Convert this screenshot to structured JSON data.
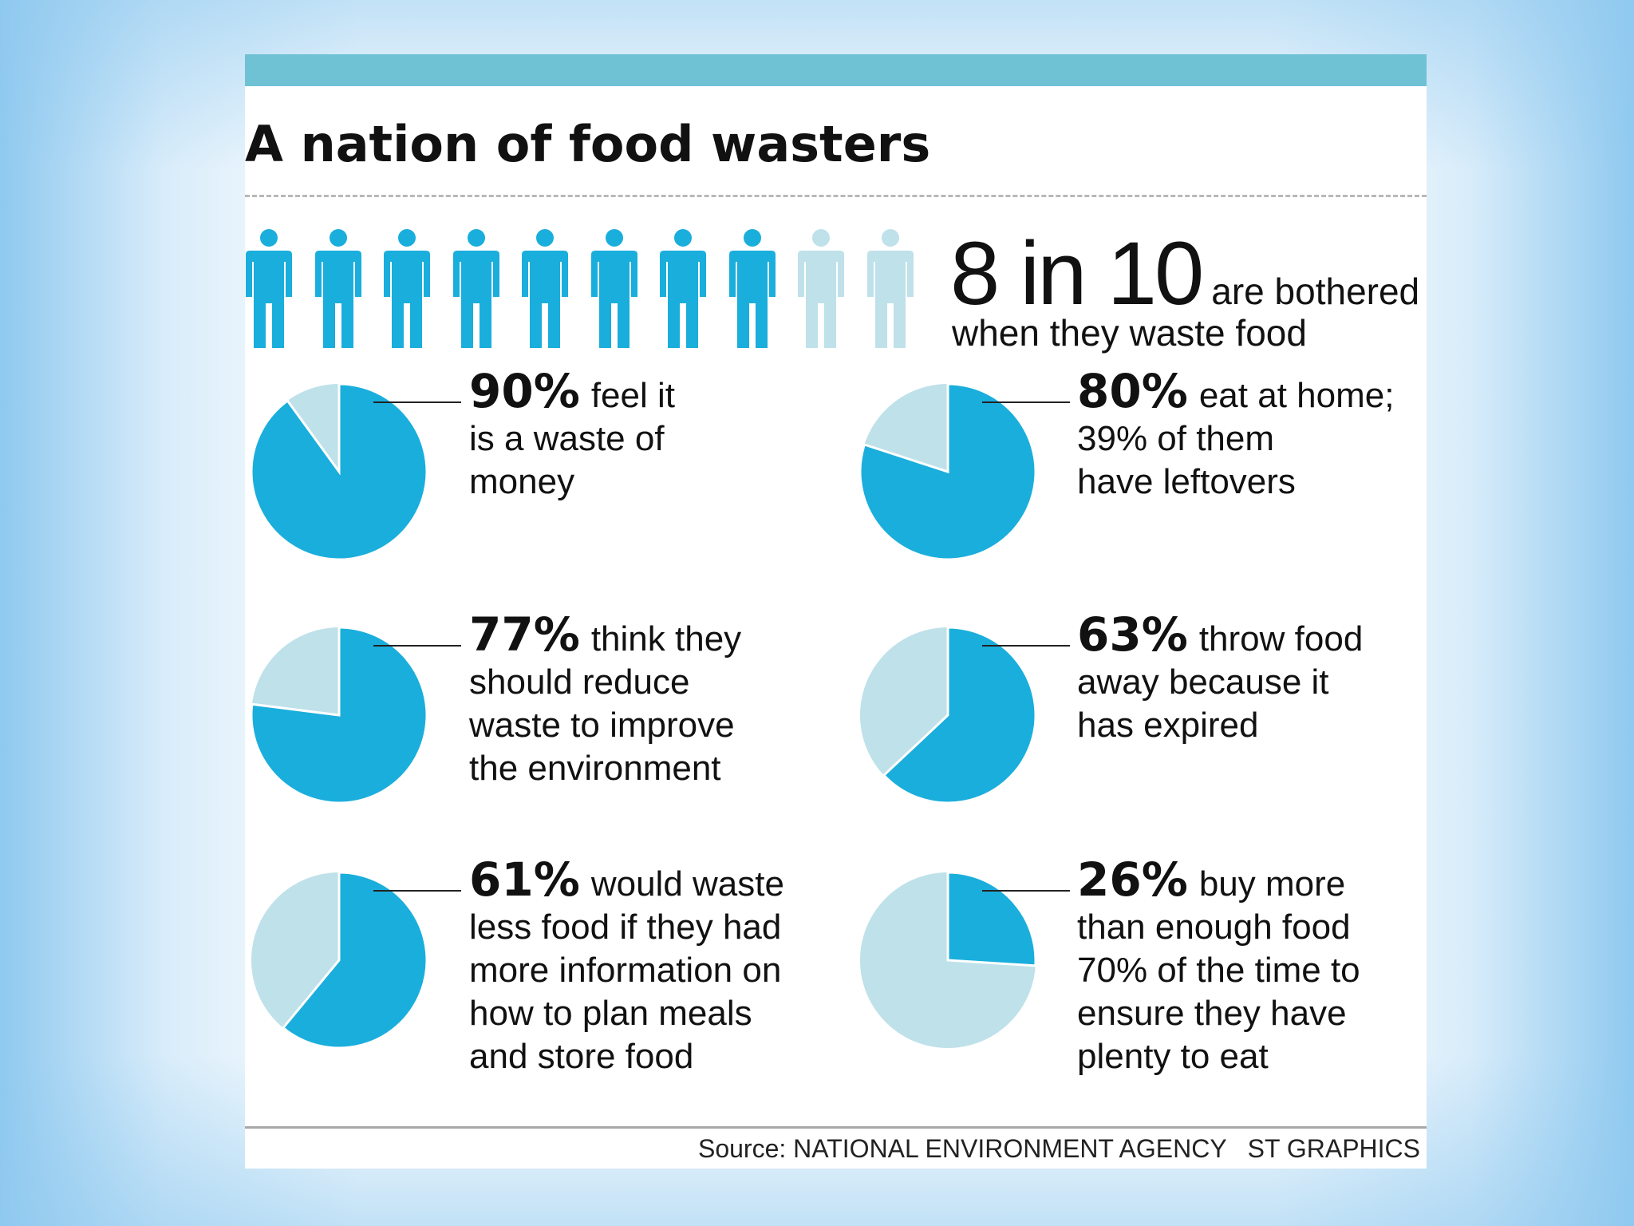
{
  "title": "A nation of food wasters",
  "headline_stat": {
    "big": "8 in 10",
    "rest": "are bothered",
    "line2": "when they waste food"
  },
  "source": "Source: NATIONAL ENVIRONMENT AGENCY",
  "credit": "ST GRAPHICS",
  "colors": {
    "accent": "#1aaedc",
    "light": "#bfe1e9",
    "top_bar": "#6fc2d4",
    "text": "#111111"
  },
  "chart_data": [
    {
      "type": "pictograph",
      "icon": "person-icon",
      "total": 10,
      "highlighted": 8,
      "label": "8 in 10 are bothered when they waste food"
    },
    {
      "type": "pie",
      "value": 90,
      "pct_label": "90%",
      "text_lines": [
        "feel it",
        "is a waste of",
        "money"
      ]
    },
    {
      "type": "pie",
      "value": 80,
      "pct_label": "80%",
      "text_lines": [
        "eat at home;",
        "39% of them",
        "have leftovers"
      ]
    },
    {
      "type": "pie",
      "value": 77,
      "pct_label": "77%",
      "text_lines": [
        "think they",
        "should reduce",
        "waste to improve",
        "the environment"
      ]
    },
    {
      "type": "pie",
      "value": 63,
      "pct_label": "63%",
      "text_lines": [
        "throw food",
        "away because it",
        "has expired"
      ]
    },
    {
      "type": "pie",
      "value": 61,
      "pct_label": "61%",
      "text_lines": [
        "would waste",
        "less food if they had",
        "more information on",
        "how to plan meals",
        "and store food"
      ]
    },
    {
      "type": "pie",
      "value": 26,
      "pct_label": "26%",
      "text_lines": [
        "buy more",
        "than enough food",
        "70% of the time to",
        "ensure they have",
        "plenty to eat"
      ]
    }
  ]
}
